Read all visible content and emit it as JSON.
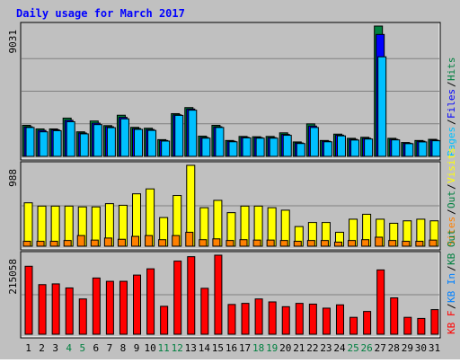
{
  "colors": {
    "background": "#c0c0c0",
    "title": "#0000ff",
    "hits": "#008040",
    "files": "#0000ff",
    "pages": "#00c0ff",
    "visits": "#ffff00",
    "sites": "#ff8000",
    "kb_in": "#0080ff",
    "kb_out": "#008040",
    "kb_f": "#ff0000",
    "weekend_label": "#008040",
    "weekday_label": "#000000"
  },
  "chart_data": {
    "title": "Daily usage for March 2017",
    "type": "bar",
    "days": [
      "1",
      "2",
      "3",
      "4",
      "5",
      "6",
      "7",
      "8",
      "9",
      "10",
      "11",
      "12",
      "13",
      "14",
      "15",
      "16",
      "17",
      "18",
      "19",
      "20",
      "21",
      "22",
      "23",
      "24",
      "25",
      "26",
      "27",
      "28",
      "29",
      "30",
      "31"
    ],
    "weekend_days": [
      "4",
      "5",
      "11",
      "12",
      "18",
      "19",
      "25",
      "26"
    ],
    "panels": [
      {
        "name": "hits-files-pages",
        "ymax": 9031,
        "ymax_label": "9031",
        "legend": [
          "Pages",
          "Files",
          "Hits"
        ],
        "series": [
          {
            "name": "Hits",
            "values": [
              2150,
              1900,
              1900,
              2650,
              1700,
              2450,
              2130,
              2850,
              2010,
              1950,
              1160,
              2960,
              3380,
              1400,
              2150,
              1100,
              1380,
              1360,
              1380,
              1630,
              1000,
              2250,
              1100,
              1540,
              1250,
              1320,
              9031,
              1250,
              960,
              1100,
              1180
            ]
          },
          {
            "name": "Files",
            "values": [
              2050,
              1800,
              1840,
              2500,
              1620,
              2300,
              2050,
              2700,
              1930,
              1860,
              1100,
              2880,
              3280,
              1310,
              2050,
              1050,
              1320,
              1300,
              1300,
              1520,
              930,
              2100,
              1050,
              1470,
              1180,
              1250,
              8450,
              1180,
              910,
              1050,
              1120
            ]
          },
          {
            "name": "Pages",
            "values": [
              2000,
              1700,
              1780,
              2400,
              1560,
              2200,
              1990,
              2600,
              1870,
              1800,
              1060,
              2840,
              3200,
              1260,
              2000,
              1010,
              1280,
              1260,
              1260,
              1460,
              890,
              2000,
              1010,
              1420,
              1130,
              1200,
              6900,
              1140,
              880,
              1000,
              1080
            ]
          }
        ]
      },
      {
        "name": "visits-sites",
        "ymax": 988,
        "ymax_label": "988",
        "legend": [
          "Sites",
          "Out",
          "Visits"
        ],
        "series": [
          {
            "name": "Visits",
            "values": [
              530,
              490,
              490,
              490,
              480,
              480,
              520,
              500,
              640,
              700,
              350,
              620,
              988,
              470,
              560,
              410,
              490,
              490,
              470,
              440,
              240,
              290,
              290,
              170,
              330,
              390,
              330,
              280,
              310,
              330,
              310
            ]
          },
          {
            "name": "Sites",
            "values": [
              60,
              60,
              60,
              70,
              130,
              75,
              100,
              85,
              120,
              130,
              80,
              130,
              170,
              80,
              90,
              70,
              80,
              75,
              75,
              70,
              60,
              70,
              70,
              50,
              70,
              80,
              110,
              70,
              60,
              60,
              75
            ]
          }
        ]
      },
      {
        "name": "kbytes",
        "ymax": 215058,
        "ymax_label": "215058",
        "legend": [
          "KB F",
          "KB In",
          "KB Out"
        ],
        "series": [
          {
            "name": "KB F",
            "values": [
              185000,
              135000,
              137000,
              126000,
              96000,
              153000,
              144000,
              144000,
              161000,
              178000,
              76000,
              199000,
              211000,
              125000,
              215058,
              81000,
              84000,
              96000,
              88000,
              75000,
              84000,
              82000,
              71000,
              80000,
              46000,
              62000,
              175000,
              99000,
              46000,
              43000,
              67000
            ]
          }
        ]
      }
    ]
  }
}
